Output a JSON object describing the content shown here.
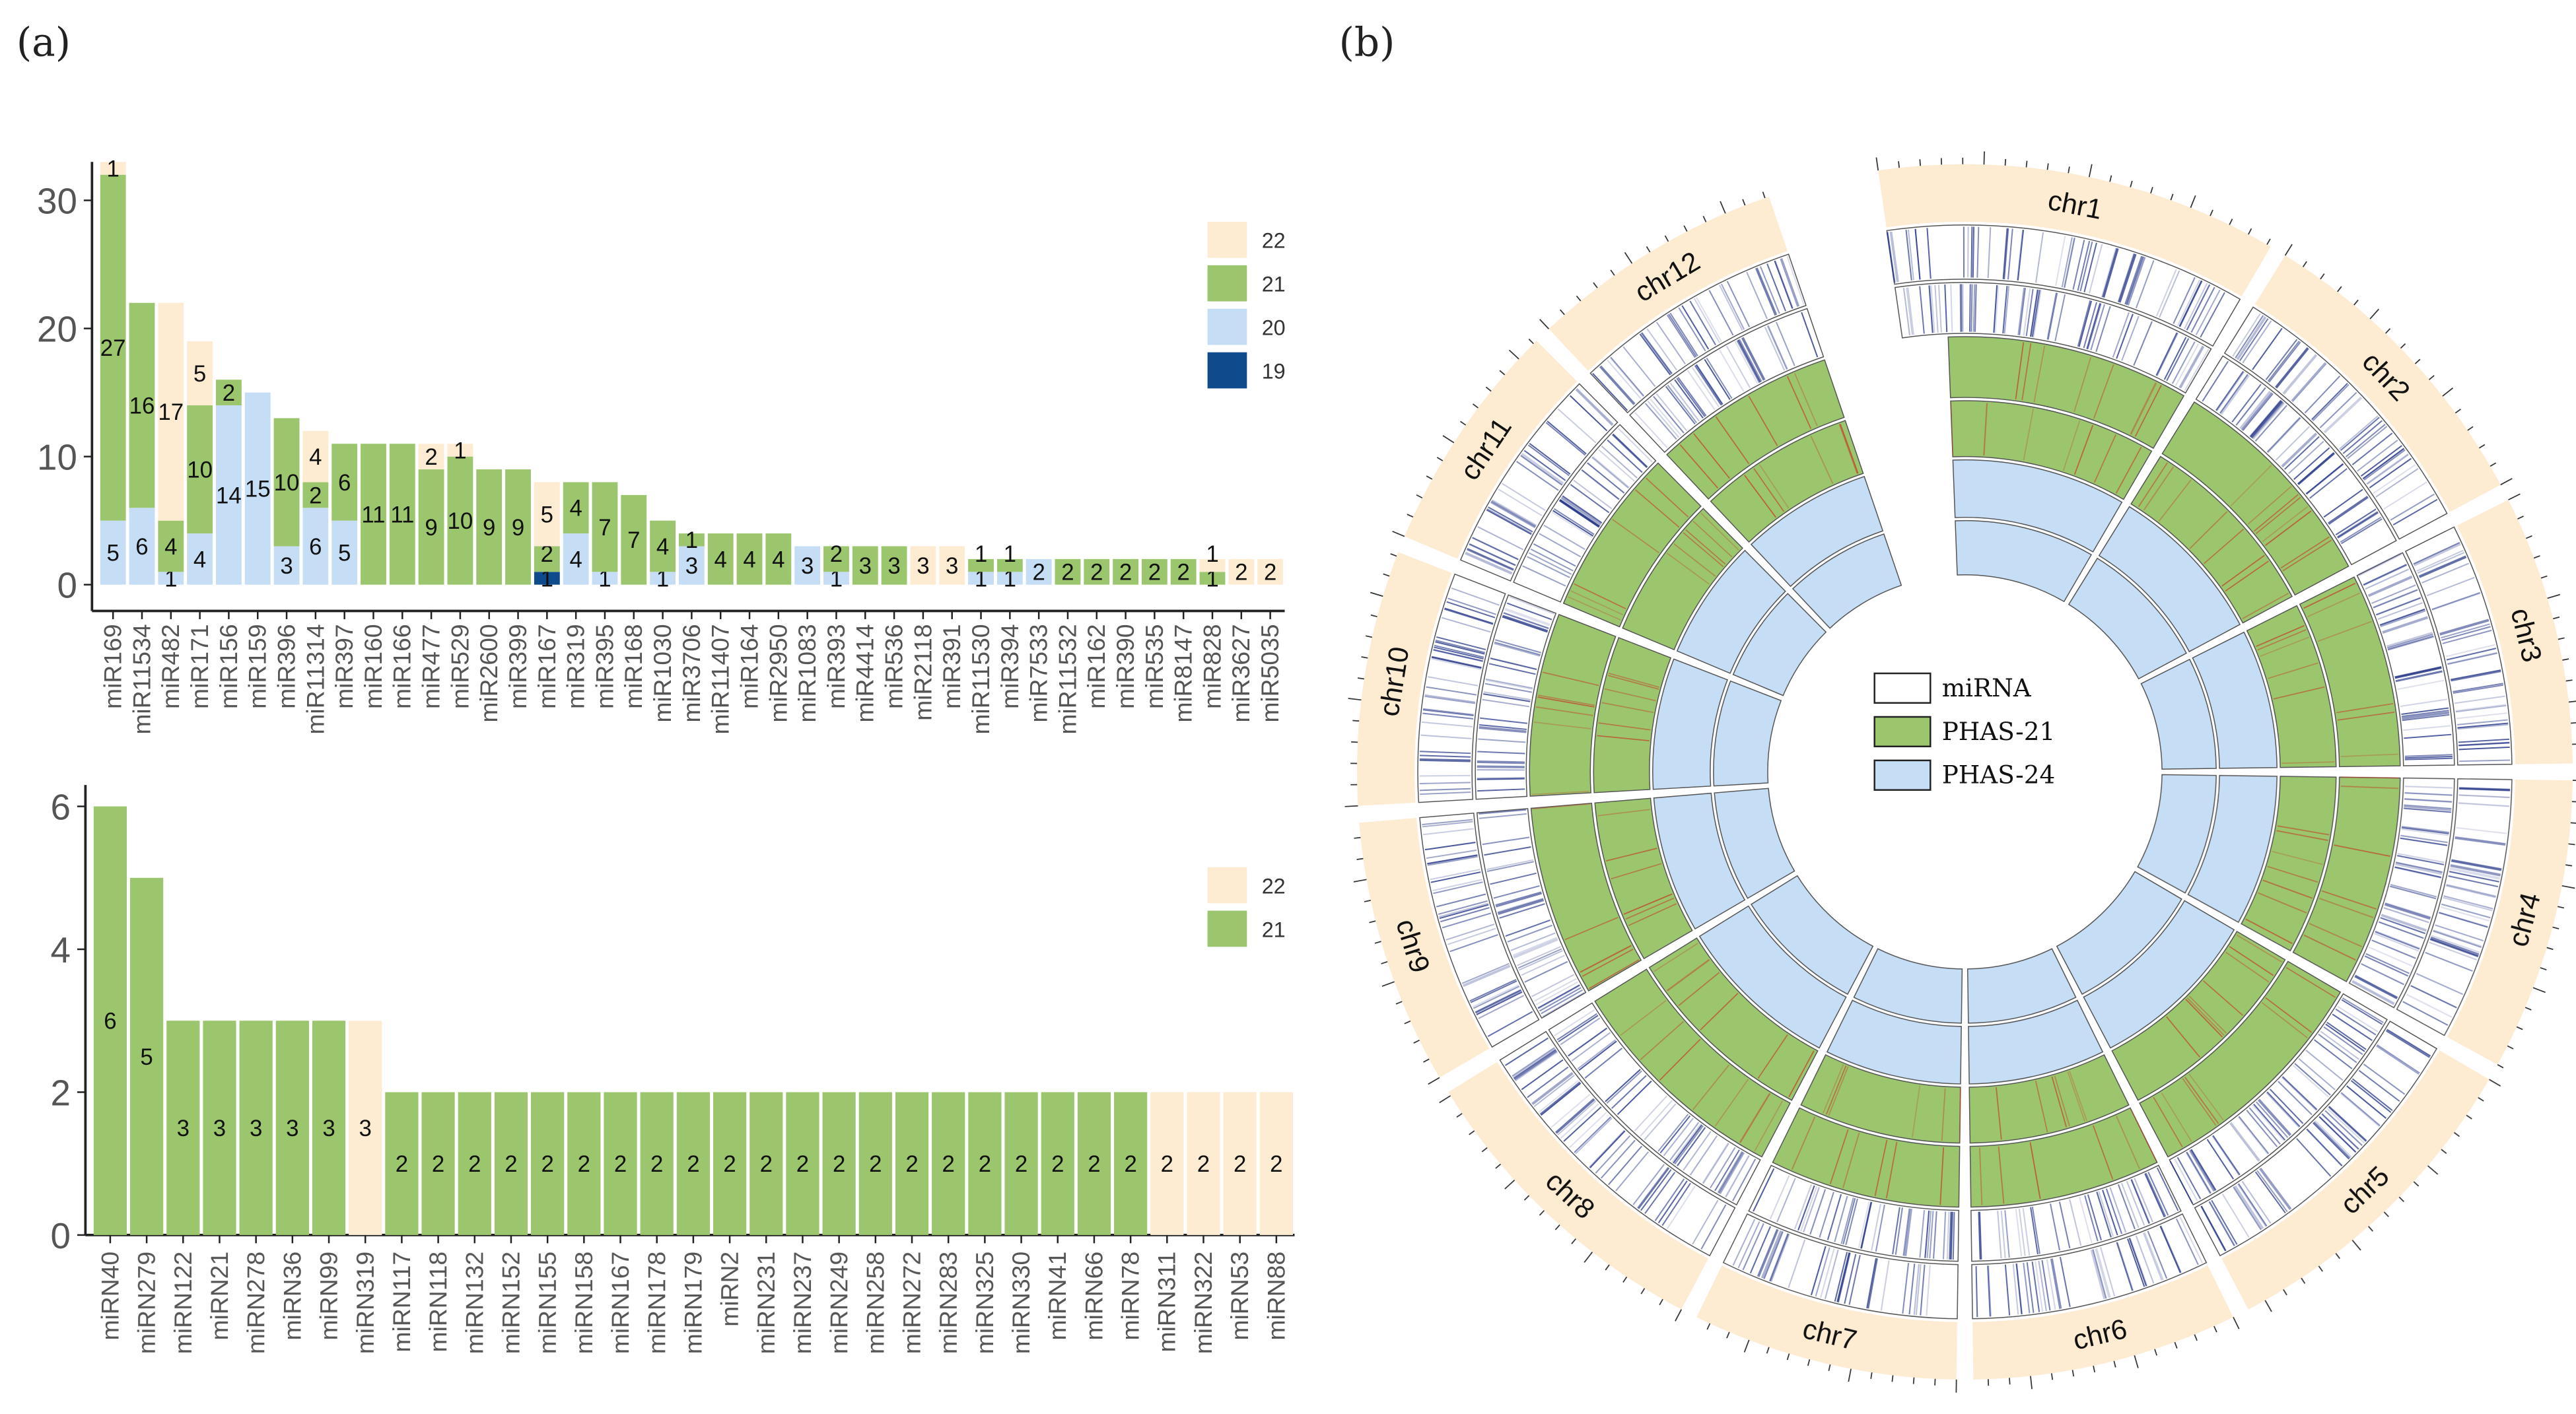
{
  "panels": {
    "a": "(a)",
    "b": "(b)"
  },
  "colors": {
    "19": "#0e4a8c",
    "20": "#c6ddf6",
    "21": "#9cc66e",
    "22": "#fdebd2",
    "miRNA_line": "#2a3a8a",
    "phas_red": "#c0452b"
  },
  "chart_data": [
    {
      "type": "bar",
      "stacked": true,
      "title": "",
      "xlabel": "",
      "ylabel": "",
      "ylim": [
        0,
        33
      ],
      "yticks": [
        "0",
        "10",
        "20",
        "30"
      ],
      "legend": {
        "placement": "top-right",
        "entries": [
          "22",
          "21",
          "20",
          "19"
        ]
      },
      "categories": [
        "miR169",
        "miR11534",
        "miR482",
        "miR171",
        "miR156",
        "miR159",
        "miR396",
        "miR11314",
        "miR397",
        "miR160",
        "miR166",
        "miR477",
        "miR529",
        "miR2600",
        "miR399",
        "miR167",
        "miR319",
        "miR395",
        "miR168",
        "miR1030",
        "miR3706",
        "miR11407",
        "miR164",
        "miR2950",
        "miR1083",
        "miR393",
        "miR4414",
        "miR536",
        "miR2118",
        "miR391",
        "miR11530",
        "miR394",
        "miR7533",
        "miR11532",
        "miR162",
        "miR390",
        "miR535",
        "miR8147",
        "miR828",
        "miR3627",
        "miR5035"
      ],
      "series": [
        {
          "name": "19",
          "values": [
            0,
            0,
            0,
            0,
            0,
            0,
            0,
            0,
            0,
            0,
            0,
            0,
            0,
            0,
            0,
            1,
            0,
            0,
            0,
            0,
            0,
            0,
            0,
            0,
            0,
            0,
            0,
            0,
            0,
            0,
            0,
            0,
            0,
            0,
            0,
            0,
            0,
            0,
            0,
            0,
            0
          ]
        },
        {
          "name": "20",
          "values": [
            5,
            6,
            1,
            4,
            14,
            15,
            3,
            6,
            5,
            0,
            0,
            0,
            0,
            0,
            0,
            0,
            4,
            1,
            0,
            1,
            3,
            0,
            0,
            0,
            3,
            1,
            0,
            0,
            0,
            0,
            1,
            1,
            2,
            0,
            0,
            0,
            0,
            0,
            0,
            0,
            0
          ]
        },
        {
          "name": "21",
          "values": [
            27,
            16,
            4,
            10,
            2,
            0,
            10,
            2,
            6,
            11,
            11,
            9,
            10,
            9,
            9,
            2,
            4,
            7,
            7,
            4,
            1,
            4,
            4,
            4,
            0,
            2,
            3,
            3,
            0,
            0,
            1,
            1,
            0,
            2,
            2,
            2,
            2,
            2,
            1,
            0,
            0
          ]
        },
        {
          "name": "22",
          "values": [
            1,
            0,
            17,
            5,
            0,
            0,
            0,
            4,
            0,
            0,
            0,
            2,
            1,
            0,
            0,
            5,
            0,
            0,
            0,
            0,
            0,
            0,
            0,
            0,
            0,
            0,
            0,
            0,
            3,
            3,
            0,
            0,
            0,
            0,
            0,
            0,
            0,
            0,
            1,
            2,
            2
          ]
        }
      ]
    },
    {
      "type": "bar",
      "stacked": true,
      "title": "",
      "xlabel": "",
      "ylabel": "",
      "ylim": [
        0,
        6.3
      ],
      "yticks": [
        "0",
        "2",
        "4",
        "6"
      ],
      "legend": {
        "placement": "top-right",
        "entries": [
          "22",
          "21"
        ]
      },
      "categories": [
        "miRN40",
        "miRN279",
        "miRN122",
        "miRN21",
        "miRN278",
        "miRN36",
        "miRN99",
        "miRN319",
        "miRN117",
        "miRN118",
        "miRN132",
        "miRN152",
        "miRN155",
        "miRN158",
        "miRN167",
        "miRN178",
        "miRN179",
        "miRN2",
        "miRN231",
        "miRN237",
        "miRN249",
        "miRN258",
        "miRN272",
        "miRN283",
        "miRN325",
        "miRN330",
        "miRN41",
        "miRN66",
        "miRN78",
        "miRN311",
        "miRN322",
        "miRN53",
        "miRN88"
      ],
      "series": [
        {
          "name": "21",
          "values": [
            6,
            5,
            3,
            3,
            3,
            3,
            3,
            0,
            2,
            2,
            2,
            2,
            2,
            2,
            2,
            2,
            2,
            2,
            2,
            2,
            2,
            2,
            2,
            2,
            2,
            2,
            2,
            2,
            2,
            0,
            0,
            0,
            0
          ]
        },
        {
          "name": "22",
          "values": [
            0,
            0,
            0,
            0,
            0,
            0,
            0,
            3,
            0,
            0,
            0,
            0,
            0,
            0,
            0,
            0,
            0,
            0,
            0,
            0,
            0,
            0,
            0,
            0,
            0,
            0,
            0,
            0,
            0,
            2,
            2,
            2,
            2
          ]
        }
      ]
    }
  ],
  "circos": {
    "chromosomes": [
      "chr1",
      "chr2",
      "chr3",
      "chr4",
      "chr5",
      "chr6",
      "chr7",
      "chr8",
      "chr9",
      "chr10",
      "chr11",
      "chr12"
    ],
    "legend": [
      "miRNA",
      "PHAS-21",
      "PHAS-24"
    ]
  }
}
